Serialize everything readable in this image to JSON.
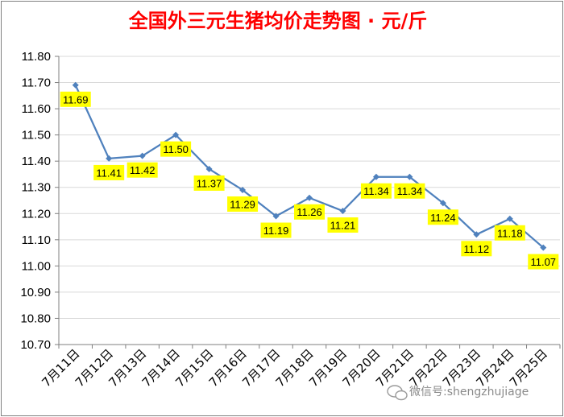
{
  "chart_data": {
    "type": "line",
    "title": "全国外三元生猪均价走势图 · 元/斤",
    "categories": [
      "7月11日",
      "7月12日",
      "7月13日",
      "7月14日",
      "7月15日",
      "7月16日",
      "7月17日",
      "7月18日",
      "7月19日",
      "7月20日",
      "7月21日",
      "7月22日",
      "7月23日",
      "7月24日",
      "7月25日"
    ],
    "series": [
      {
        "values": [
          11.69,
          11.41,
          11.42,
          11.5,
          11.37,
          11.29,
          11.19,
          11.26,
          11.21,
          11.34,
          11.34,
          11.24,
          11.12,
          11.18,
          11.07
        ]
      }
    ],
    "ylim": [
      10.7,
      11.8
    ],
    "yticks": [
      "10.70",
      "10.80",
      "10.90",
      "11.00",
      "11.10",
      "11.20",
      "11.30",
      "11.40",
      "11.50",
      "11.60",
      "11.70",
      "11.80"
    ],
    "grid": true,
    "colors": {
      "line": "#4f81bd",
      "label_bg": "#ffff00",
      "title": "#ff0000",
      "grid": "#d9d9d9"
    }
  },
  "watermark": "微信号:shengzhujiage"
}
